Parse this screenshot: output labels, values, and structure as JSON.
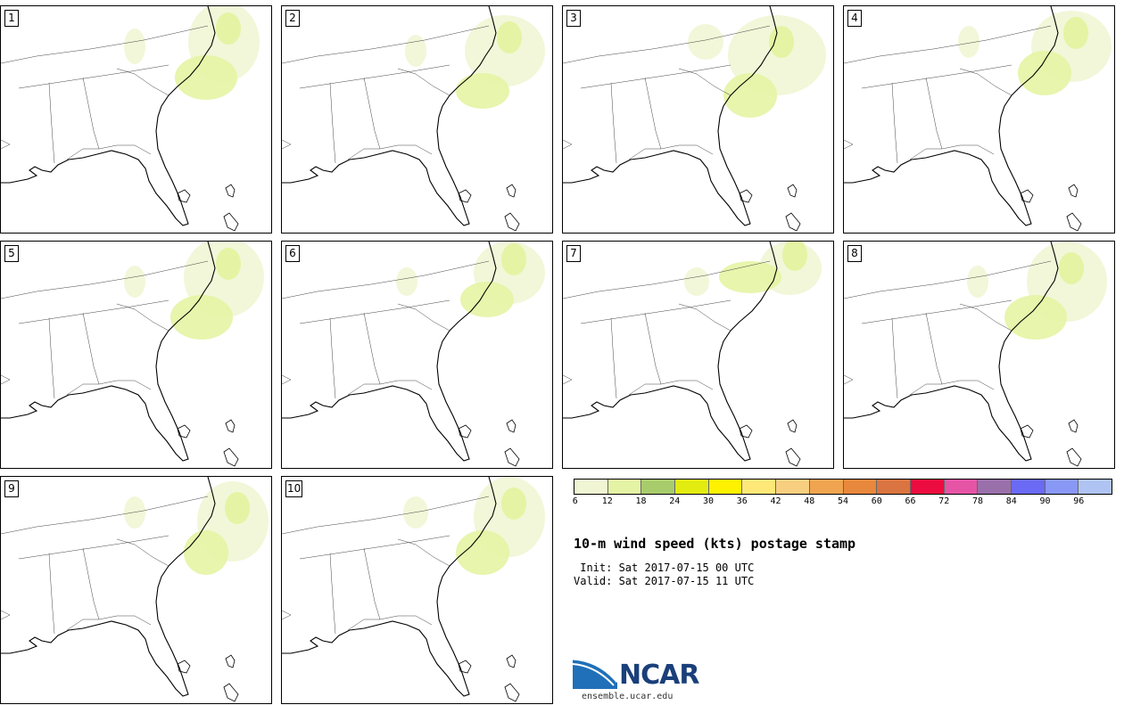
{
  "panels": [
    {
      "label": "1",
      "col": 0,
      "row": 0,
      "blobs": [
        [
          250,
          40,
          40,
          45
        ],
        [
          230,
          80,
          35,
          25
        ],
        [
          150,
          45,
          12,
          20
        ]
      ]
    },
    {
      "label": "2",
      "col": 1,
      "row": 0,
      "blobs": [
        [
          250,
          50,
          45,
          40
        ],
        [
          225,
          95,
          30,
          20
        ],
        [
          150,
          50,
          12,
          18
        ]
      ]
    },
    {
      "label": "3",
      "col": 2,
      "row": 0,
      "blobs": [
        [
          240,
          55,
          55,
          45
        ],
        [
          210,
          100,
          30,
          25
        ],
        [
          160,
          40,
          20,
          20
        ]
      ]
    },
    {
      "label": "4",
      "col": 3,
      "row": 0,
      "blobs": [
        [
          255,
          45,
          45,
          40
        ],
        [
          225,
          75,
          30,
          25
        ],
        [
          140,
          40,
          12,
          18
        ]
      ]
    },
    {
      "label": "5",
      "col": 0,
      "row": 1,
      "blobs": [
        [
          250,
          40,
          45,
          45
        ],
        [
          225,
          85,
          35,
          25
        ],
        [
          150,
          45,
          12,
          18
        ]
      ]
    },
    {
      "label": "6",
      "col": 1,
      "row": 1,
      "blobs": [
        [
          255,
          35,
          40,
          35
        ],
        [
          230,
          65,
          30,
          20
        ],
        [
          140,
          45,
          12,
          16
        ]
      ]
    },
    {
      "label": "7",
      "col": 2,
      "row": 1,
      "blobs": [
        [
          255,
          30,
          35,
          30
        ],
        [
          210,
          40,
          35,
          18
        ],
        [
          150,
          45,
          14,
          16
        ]
      ]
    },
    {
      "label": "8",
      "col": 3,
      "row": 1,
      "blobs": [
        [
          250,
          45,
          45,
          45
        ],
        [
          215,
          85,
          35,
          25
        ],
        [
          150,
          45,
          12,
          18
        ]
      ]
    },
    {
      "label": "9",
      "col": 0,
      "row": 2,
      "blobs": [
        [
          260,
          50,
          40,
          45
        ],
        [
          230,
          85,
          25,
          25
        ],
        [
          150,
          40,
          12,
          18
        ]
      ]
    },
    {
      "label": "10",
      "col": 1,
      "row": 2,
      "blobs": [
        [
          255,
          45,
          40,
          45
        ],
        [
          225,
          85,
          30,
          25
        ],
        [
          150,
          40,
          14,
          18
        ]
      ]
    }
  ],
  "legend": {
    "colors": [
      "#f0f6d4",
      "#e4f4a4",
      "#a8cc6c",
      "#e2ec10",
      "#fef200",
      "#fee878",
      "#f8ce80",
      "#f0a450",
      "#e8883c",
      "#da7440",
      "#ec0c40",
      "#e654a6",
      "#9a70aa",
      "#6a6af4",
      "#8898f4",
      "#b0c4f4"
    ],
    "ticks": [
      "6",
      "12",
      "18",
      "24",
      "30",
      "36",
      "42",
      "48",
      "54",
      "60",
      "66",
      "72",
      "78",
      "84",
      "90",
      "96"
    ]
  },
  "title": "10-m wind speed (kts) postage stamp",
  "init": " Init: Sat 2017-07-15 00 UTC",
  "valid": "Valid: Sat 2017-07-15 11 UTC",
  "logo": {
    "word": "NCAR",
    "url": "ensemble.ucar.edu"
  }
}
